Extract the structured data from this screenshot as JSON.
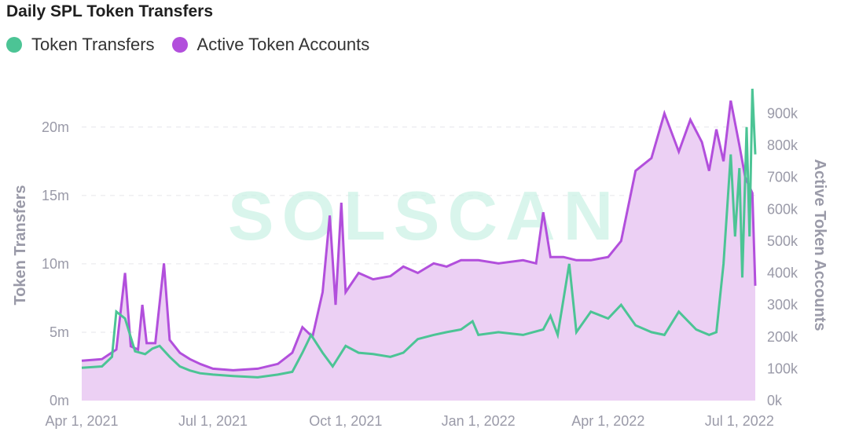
{
  "title": "Daily SPL Token Transfers",
  "watermark": "SOLSCAN",
  "colors": {
    "token_transfers": "#4cc495",
    "active_accounts": "#b24fdc",
    "active_accounts_fill": "#ecd0f4"
  },
  "chart_data": {
    "type": "line",
    "legend_position": "top-left",
    "x_ticks": [
      "Apr 1, 2021",
      "Jul 1, 2021",
      "Oct 1, 2021",
      "Jan 1, 2022",
      "Apr 1, 2022",
      "Jul 1, 2022"
    ],
    "y_left": {
      "label": "Token Transfers",
      "ticks": [
        "0m",
        "5m",
        "10m",
        "15m",
        "20m"
      ],
      "range": [
        0,
        20000000
      ]
    },
    "y_right": {
      "label": "Active Token Accounts",
      "ticks": [
        "0k",
        "100k",
        "200k",
        "300k",
        "400k",
        "500k",
        "600k",
        "700k",
        "800k",
        "900k"
      ],
      "range": [
        0,
        900000
      ]
    },
    "series": [
      {
        "name": "Token Transfers",
        "axis": "left",
        "points": [
          [
            "2021-04-01",
            2.4
          ],
          [
            "2021-04-15",
            2.5
          ],
          [
            "2021-04-22",
            3.2
          ],
          [
            "2021-04-25",
            6.5
          ],
          [
            "2021-05-01",
            6.0
          ],
          [
            "2021-05-08",
            3.6
          ],
          [
            "2021-05-15",
            3.4
          ],
          [
            "2021-05-20",
            3.8
          ],
          [
            "2021-05-25",
            4.0
          ],
          [
            "2021-06-01",
            3.2
          ],
          [
            "2021-06-08",
            2.5
          ],
          [
            "2021-06-15",
            2.2
          ],
          [
            "2021-06-22",
            2.0
          ],
          [
            "2021-07-01",
            1.9
          ],
          [
            "2021-07-15",
            1.8
          ],
          [
            "2021-08-01",
            1.7
          ],
          [
            "2021-08-15",
            1.9
          ],
          [
            "2021-08-25",
            2.1
          ],
          [
            "2021-09-01",
            3.5
          ],
          [
            "2021-09-07",
            4.8
          ],
          [
            "2021-09-15",
            3.5
          ],
          [
            "2021-09-22",
            2.5
          ],
          [
            "2021-10-01",
            4.0
          ],
          [
            "2021-10-10",
            3.5
          ],
          [
            "2021-10-20",
            3.4
          ],
          [
            "2021-11-01",
            3.2
          ],
          [
            "2021-11-10",
            3.5
          ],
          [
            "2021-11-20",
            4.5
          ],
          [
            "2021-12-01",
            4.8
          ],
          [
            "2021-12-10",
            5.0
          ],
          [
            "2021-12-20",
            5.2
          ],
          [
            "2021-12-28",
            5.8
          ],
          [
            "2022-01-01",
            4.8
          ],
          [
            "2022-01-15",
            5.0
          ],
          [
            "2022-02-01",
            4.8
          ],
          [
            "2022-02-15",
            5.2
          ],
          [
            "2022-02-20",
            6.2
          ],
          [
            "2022-02-25",
            4.8
          ],
          [
            "2022-03-05",
            10.0
          ],
          [
            "2022-03-10",
            5.0
          ],
          [
            "2022-03-20",
            6.5
          ],
          [
            "2022-04-01",
            6.0
          ],
          [
            "2022-04-10",
            7.0
          ],
          [
            "2022-04-20",
            5.5
          ],
          [
            "2022-05-01",
            5.0
          ],
          [
            "2022-05-10",
            4.8
          ],
          [
            "2022-05-20",
            6.5
          ],
          [
            "2022-06-01",
            5.2
          ],
          [
            "2022-06-10",
            4.8
          ],
          [
            "2022-06-15",
            5.0
          ],
          [
            "2022-06-20",
            10.0
          ],
          [
            "2022-06-25",
            18.0
          ],
          [
            "2022-06-28",
            12.0
          ],
          [
            "2022-07-01",
            17.0
          ],
          [
            "2022-07-03",
            9.0
          ],
          [
            "2022-07-06",
            20.0
          ],
          [
            "2022-07-08",
            12.0
          ],
          [
            "2022-07-10",
            22.8
          ],
          [
            "2022-07-12",
            18.0
          ]
        ]
      },
      {
        "name": "Active Token Accounts",
        "axis": "right",
        "points": [
          [
            "2021-04-01",
            125
          ],
          [
            "2021-04-15",
            130
          ],
          [
            "2021-04-25",
            160
          ],
          [
            "2021-05-01",
            400
          ],
          [
            "2021-05-05",
            170
          ],
          [
            "2021-05-10",
            160
          ],
          [
            "2021-05-13",
            300
          ],
          [
            "2021-05-16",
            180
          ],
          [
            "2021-05-22",
            180
          ],
          [
            "2021-05-28",
            430
          ],
          [
            "2021-06-01",
            190
          ],
          [
            "2021-06-08",
            150
          ],
          [
            "2021-06-15",
            130
          ],
          [
            "2021-06-22",
            115
          ],
          [
            "2021-07-01",
            100
          ],
          [
            "2021-07-15",
            95
          ],
          [
            "2021-08-01",
            100
          ],
          [
            "2021-08-15",
            115
          ],
          [
            "2021-08-25",
            150
          ],
          [
            "2021-09-01",
            230
          ],
          [
            "2021-09-08",
            200
          ],
          [
            "2021-09-15",
            340
          ],
          [
            "2021-09-20",
            580
          ],
          [
            "2021-09-24",
            300
          ],
          [
            "2021-09-28",
            620
          ],
          [
            "2021-10-01",
            340
          ],
          [
            "2021-10-10",
            400
          ],
          [
            "2021-10-20",
            380
          ],
          [
            "2021-11-01",
            390
          ],
          [
            "2021-11-10",
            420
          ],
          [
            "2021-11-20",
            400
          ],
          [
            "2021-12-01",
            430
          ],
          [
            "2021-12-10",
            420
          ],
          [
            "2021-12-20",
            440
          ],
          [
            "2022-01-01",
            440
          ],
          [
            "2022-01-15",
            430
          ],
          [
            "2022-02-01",
            440
          ],
          [
            "2022-02-10",
            430
          ],
          [
            "2022-02-15",
            590
          ],
          [
            "2022-02-20",
            450
          ],
          [
            "2022-03-01",
            450
          ],
          [
            "2022-03-10",
            440
          ],
          [
            "2022-03-20",
            440
          ],
          [
            "2022-04-01",
            450
          ],
          [
            "2022-04-10",
            500
          ],
          [
            "2022-04-20",
            720
          ],
          [
            "2022-05-01",
            760
          ],
          [
            "2022-05-10",
            900
          ],
          [
            "2022-05-20",
            780
          ],
          [
            "2022-05-28",
            880
          ],
          [
            "2022-06-05",
            810
          ],
          [
            "2022-06-10",
            720
          ],
          [
            "2022-06-15",
            850
          ],
          [
            "2022-06-20",
            750
          ],
          [
            "2022-06-25",
            940
          ],
          [
            "2022-07-01",
            800
          ],
          [
            "2022-07-05",
            700
          ],
          [
            "2022-07-10",
            650
          ],
          [
            "2022-07-12",
            360
          ]
        ]
      }
    ]
  }
}
